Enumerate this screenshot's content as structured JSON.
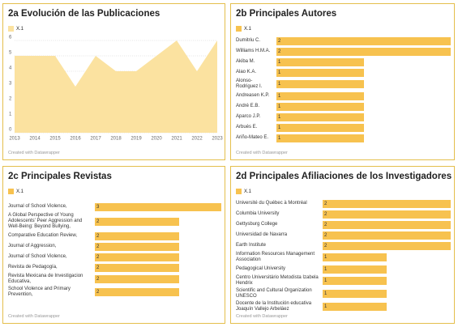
{
  "chart_data": [
    {
      "type": "area",
      "title": "2a Evolución de las Publicaciones",
      "x": [
        2013,
        2014,
        2015,
        2016,
        2017,
        2018,
        2019,
        2020,
        2021,
        2022,
        2023
      ],
      "series": [
        {
          "name": "X.1",
          "color": "#fbe2a0",
          "values": [
            5,
            5,
            5,
            3,
            5,
            4,
            4,
            5,
            6,
            4,
            6
          ]
        }
      ],
      "xlim": [
        2013,
        2023
      ],
      "ylim": [
        0,
        6
      ],
      "yticks": [
        0,
        1,
        2,
        3,
        4,
        5,
        6
      ],
      "grid": true,
      "credit": "Created with Datawrapper"
    },
    {
      "type": "bar",
      "title": "2b Principales Autores",
      "categories": [
        "Dumitriu C.",
        "Williams H.M.A.",
        "Akiba M.",
        "Alao K.A.",
        "Alonso-Rodriguez I.",
        "Andreasen K.P.",
        "André E.B.",
        "Aparco J.P.",
        "Arbués E.",
        "Ariño-Mateo E."
      ],
      "series": [
        {
          "name": "X.1",
          "color": "#f7c24f",
          "values": [
            2,
            2,
            1,
            1,
            1,
            1,
            1,
            1,
            1,
            1
          ]
        }
      ],
      "credit": "Created with Datawrapper"
    },
    {
      "type": "bar",
      "title": "2c Principales Revistas",
      "categories": [
        "Journal of School Violence,",
        "A Global Perspective of Young Adolescents' Peer Aggression and Well-Being: Beyond Bullying,",
        "Comparative Education Review,",
        "Journal of Aggression,",
        "Journal of School Violence,",
        "Revista de Pedagogía,",
        "Revista Mexicana de Investigacion Educativa,",
        "School Violence and Primary Prevention,"
      ],
      "series": [
        {
          "name": "X.1",
          "color": "#f7c24f",
          "values": [
            3,
            2,
            2,
            2,
            2,
            2,
            2,
            2
          ]
        }
      ],
      "credit": "Created with Datawrapper"
    },
    {
      "type": "bar",
      "title": "2d Principales Afiliaciones de los Investigadores",
      "categories": [
        "Université du Québec à Montréal",
        "Columbia University",
        "Gettysburg College",
        "Universidad de Navarra",
        "Earth Institute",
        "Information Resources Management Association",
        "Pedagogical University",
        "Centro Universitário Metodista Izabela Hendrix",
        "Scientific and Cultural Organization UNESCO",
        "Docente de la Institución educativa Joaquín Vallejo Arbeláez"
      ],
      "series": [
        {
          "name": "X.1",
          "color": "#f7c24f",
          "values": [
            2,
            2,
            2,
            2,
            2,
            1,
            1,
            1,
            1,
            1
          ]
        }
      ],
      "credit": "Created with Datawrapper"
    }
  ]
}
